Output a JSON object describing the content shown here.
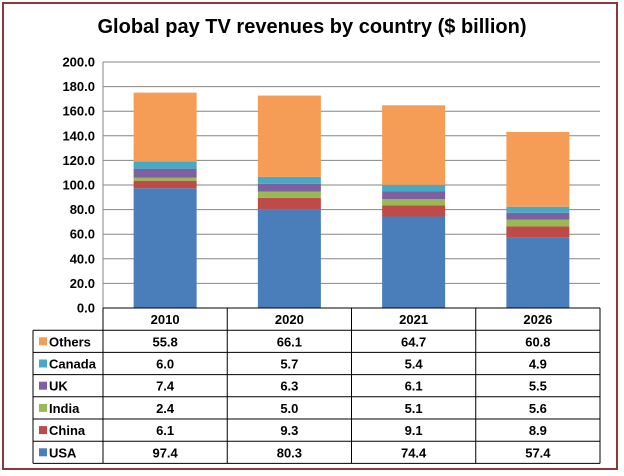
{
  "chart_data": {
    "type": "bar",
    "stacked": true,
    "title": "Global pay TV revenues by country ($ billion)",
    "categories": [
      "2010",
      "2020",
      "2021",
      "2026"
    ],
    "series": [
      {
        "name": "USA",
        "color": "#4a7ebb",
        "values": [
          97.4,
          80.3,
          74.4,
          57.4
        ]
      },
      {
        "name": "China",
        "color": "#be4b48",
        "values": [
          6.1,
          9.3,
          9.1,
          8.9
        ]
      },
      {
        "name": "India",
        "color": "#98b954",
        "values": [
          2.4,
          5.0,
          5.1,
          5.6
        ]
      },
      {
        "name": "UK",
        "color": "#7d60a0",
        "values": [
          7.4,
          6.3,
          6.1,
          5.5
        ]
      },
      {
        "name": "Canada",
        "color": "#46aac5",
        "values": [
          6.0,
          5.7,
          5.4,
          4.9
        ]
      },
      {
        "name": "Others",
        "color": "#f59d56",
        "values": [
          55.8,
          66.1,
          64.7,
          60.8
        ]
      }
    ],
    "table_rows": [
      {
        "name": "Others",
        "cells": [
          "55.8",
          "66.1",
          "64.7",
          "60.8"
        ]
      },
      {
        "name": "Canada",
        "cells": [
          "6.0",
          "5.7",
          "5.4",
          "4.9"
        ]
      },
      {
        "name": "UK",
        "cells": [
          "7.4",
          "6.3",
          "6.1",
          "5.5"
        ]
      },
      {
        "name": "India",
        "cells": [
          "2.4",
          "5.0",
          "5.1",
          "5.6"
        ]
      },
      {
        "name": "China",
        "cells": [
          "6.1",
          "9.3",
          "9.1",
          "8.9"
        ]
      },
      {
        "name": "USA",
        "cells": [
          "97.4",
          "80.3",
          "74.4",
          "57.4"
        ]
      }
    ],
    "y_ticks": [
      "0.0",
      "20.0",
      "40.0",
      "60.0",
      "80.0",
      "100.0",
      "120.0",
      "140.0",
      "160.0",
      "180.0",
      "200.0"
    ],
    "ylim": [
      0,
      200
    ],
    "grid": true,
    "legend": "data-table-left"
  },
  "colors": {
    "frame": "#8b3a3a",
    "grid": "#868686"
  }
}
